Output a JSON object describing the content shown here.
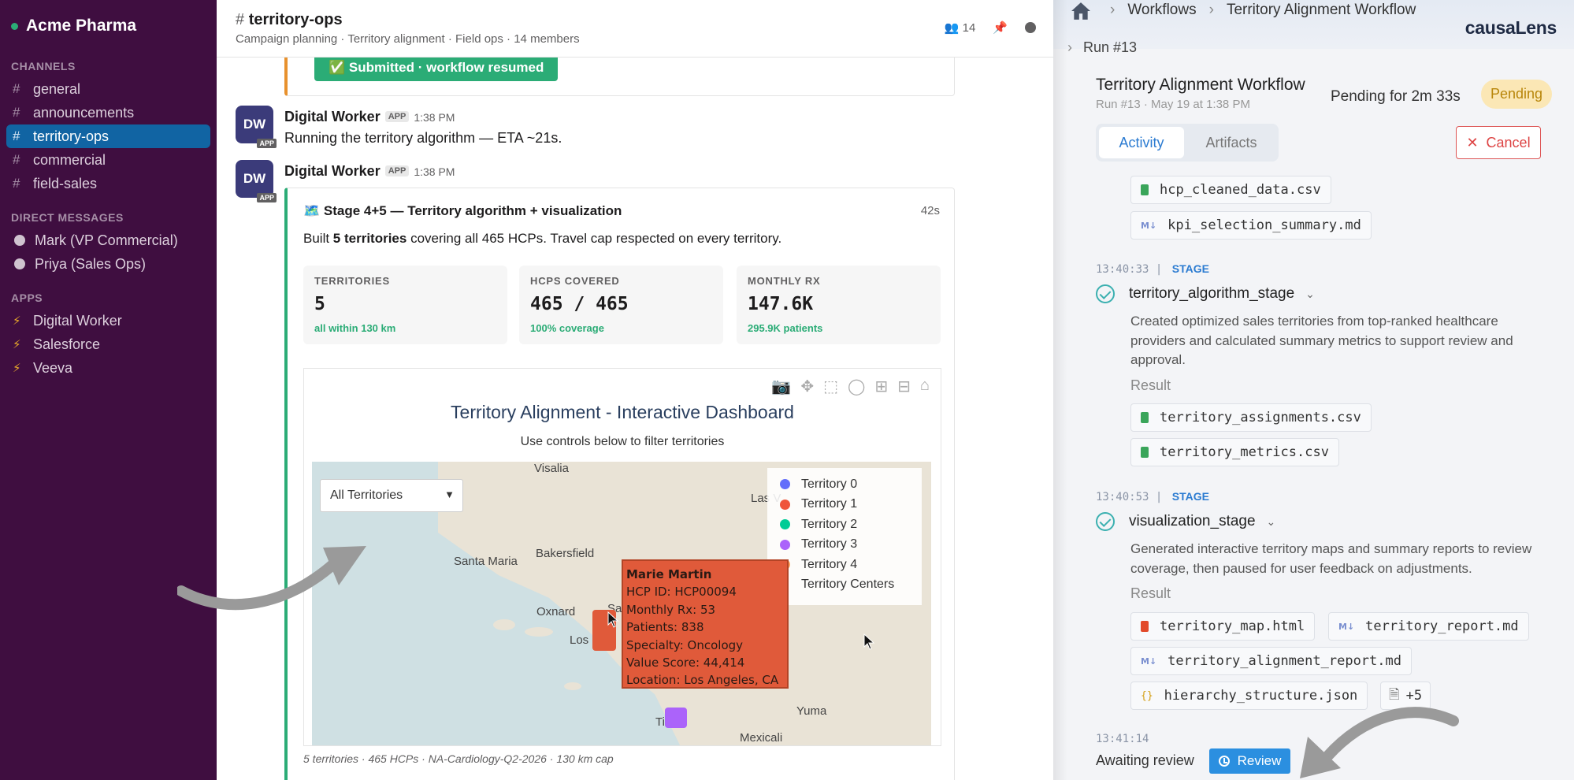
{
  "workspace": {
    "name": "Acme Pharma"
  },
  "sidebar": {
    "channels_header": "CHANNELS",
    "channels": [
      {
        "label": "general"
      },
      {
        "label": "announcements"
      },
      {
        "label": "territory-ops"
      },
      {
        "label": "commercial"
      },
      {
        "label": "field-sales"
      }
    ],
    "dm_header": "DIRECT MESSAGES",
    "dms": [
      {
        "label": "Mark (VP Commercial)"
      },
      {
        "label": "Priya (Sales Ops)"
      }
    ],
    "apps_header": "APPS",
    "apps": [
      {
        "label": "Digital Worker"
      },
      {
        "label": "Salesforce"
      },
      {
        "label": "Veeva"
      }
    ]
  },
  "channel": {
    "hash": "#",
    "name": "territory-ops",
    "subtitle": "Campaign planning · Territory alignment · Field ops · 14 members",
    "member_count": "14"
  },
  "previous_card": {
    "button": "✅ Submitted · workflow resumed"
  },
  "messages": [
    {
      "avatar": "DW",
      "app_badge": "APP",
      "author": "Digital Worker",
      "time": "1:38 PM",
      "text": "Running the territory algorithm — ETA ~21s."
    },
    {
      "avatar": "DW",
      "app_badge": "APP",
      "author": "Digital Worker",
      "time": "1:38 PM"
    }
  ],
  "card": {
    "title": "🗺️ Stage 4+5 — Territory algorithm + visualization",
    "duration": "42s",
    "desc_pre": "Built ",
    "desc_bold": "5 territories",
    "desc_post": " covering all 465 HCPs. Travel cap respected on every territory.",
    "stats": [
      {
        "label": "TERRITORIES",
        "value": "5",
        "note": "all within 130 km"
      },
      {
        "label": "HCPS COVERED",
        "value": "465 / 465",
        "note": "100% coverage"
      },
      {
        "label": "MONTHLY RX",
        "value": "147.6K",
        "note": "295.9K patients"
      }
    ],
    "footer": "5 territories · 465 HCPs · NA-Cardiology-Q2-2026 · 130 km cap"
  },
  "dashboard": {
    "title": "Territory Alignment - Interactive Dashboard",
    "subtitle": "Use controls below to filter territories",
    "dropdown": "All Territories",
    "toolbar_icons": [
      "camera-icon",
      "pan-icon",
      "box-select-icon",
      "lasso-icon",
      "zoom-in-icon",
      "zoom-out-icon",
      "home-icon"
    ],
    "map_labels": [
      "Visalia",
      "Las V",
      "Bakersfield",
      "Santa Maria",
      "Oxnard",
      "Los",
      "Sa",
      "Ti",
      "Yuma",
      "Mexicali"
    ],
    "legend": [
      {
        "label": "Territory 0",
        "color": "#636efa"
      },
      {
        "label": "Territory 1",
        "color": "#ef553b"
      },
      {
        "label": "Territory 2",
        "color": "#00cc96"
      },
      {
        "label": "Territory 3",
        "color": "#ab63fa"
      },
      {
        "label": "Territory 4",
        "color": "#ffa15a"
      },
      {
        "label": "Territory Centers",
        "color": ""
      }
    ],
    "tooltip": {
      "name": "Marie Martin",
      "lines": [
        "HCP ID: HCP00094",
        "Monthly Rx: 53",
        "Patients: 838",
        "Specialty: Oncology",
        "Value Score: 44,414",
        "Location: Los Angeles, CA"
      ]
    }
  },
  "panel": {
    "crumbs": [
      "Workflows",
      "Territory Alignment Workflow"
    ],
    "run": "Run #13",
    "brand": "causaLens",
    "title": "Territory Alignment Workflow",
    "meta": "Run #13 · May 19 at 1:38 PM",
    "pending_text": "Pending for 2m 33s",
    "status": "Pending",
    "tabs": [
      "Activity",
      "Artifacts"
    ],
    "cancel": "Cancel",
    "prior_files": [
      "hcp_cleaned_data.csv",
      "kpi_selection_summary.md"
    ],
    "stages": [
      {
        "time": "13:40:33",
        "tag": "STAGE",
        "name": "territory_algorithm_stage",
        "desc": "Created optimized sales territories from top-ranked healthcare providers and calculated summary metrics to support review and approval.",
        "result_label": "Result",
        "files": [
          "territory_assignments.csv",
          "territory_metrics.csv"
        ]
      },
      {
        "time": "13:40:53",
        "tag": "STAGE",
        "name": "visualization_stage",
        "desc": "Generated interactive territory maps and summary reports to review coverage, then paused for user feedback on adjustments.",
        "result_label": "Result",
        "files": [
          "territory_map.html",
          "territory_report.md",
          "territory_alignment_report.md",
          "hierarchy_structure.json"
        ],
        "more": "+5"
      }
    ],
    "last_time": "13:41:14",
    "awaiting": "Awaiting review",
    "review": "Review"
  },
  "colors": {
    "sidebar": "#3f0e40",
    "active": "#1164a3",
    "accent": "#2bac76",
    "brand_blue": "#2b8fe0"
  }
}
